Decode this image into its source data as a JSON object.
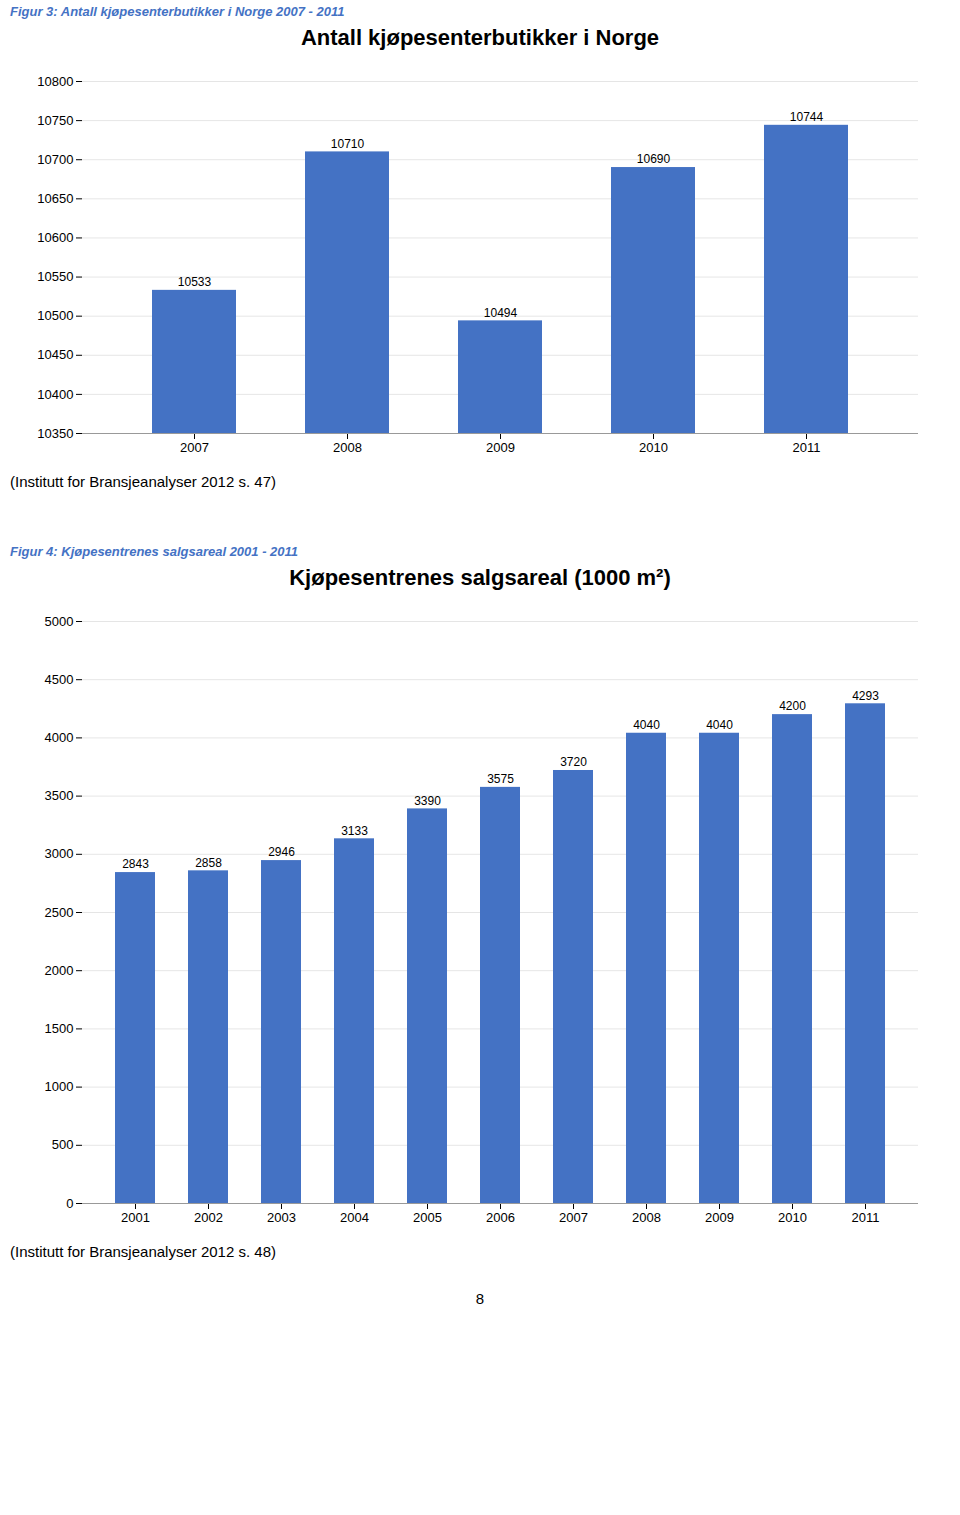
{
  "chart_data": [
    {
      "type": "bar",
      "title": "Antall kjøpesenterbutikker i Norge",
      "subtitle": "Figur 3: Antall kjøpesenterbutikker i Norge 2007 - 2011",
      "caption": "(Institutt for Bransjeanalyser 2012 s. 47)",
      "categories": [
        "2007",
        "2008",
        "2009",
        "2010",
        "2011"
      ],
      "values": [
        10533,
        10710,
        10494,
        10690,
        10744
      ],
      "color": "#4472C4",
      "ylim": [
        10350,
        10800
      ],
      "yticks": [
        10350,
        10400,
        10450,
        10500,
        10550,
        10600,
        10650,
        10700,
        10750,
        10800
      ],
      "grid": true,
      "data_labels": true
    },
    {
      "type": "bar",
      "title": "Kjøpesentrenes salgsareal (1000 m²)",
      "subtitle": "Figur 4: Kjøpesentrenes salgsareal 2001 - 2011",
      "caption": "(Institutt for Bransjeanalyser 2012 s. 48)",
      "categories": [
        "2001",
        "2002",
        "2003",
        "2004",
        "2005",
        "2006",
        "2007",
        "2008",
        "2009",
        "2010",
        "2011"
      ],
      "values": [
        2843,
        2858,
        2946,
        3133,
        3390,
        3575,
        3720,
        4040,
        4040,
        4200,
        4293
      ],
      "color": "#4472C4",
      "ylim": [
        0,
        5000
      ],
      "yticks": [
        0,
        500,
        1000,
        1500,
        2000,
        2500,
        3000,
        3500,
        4000,
        4500,
        5000
      ],
      "grid": true,
      "data_labels": true,
      "annotations": [
        "8"
      ]
    }
  ]
}
